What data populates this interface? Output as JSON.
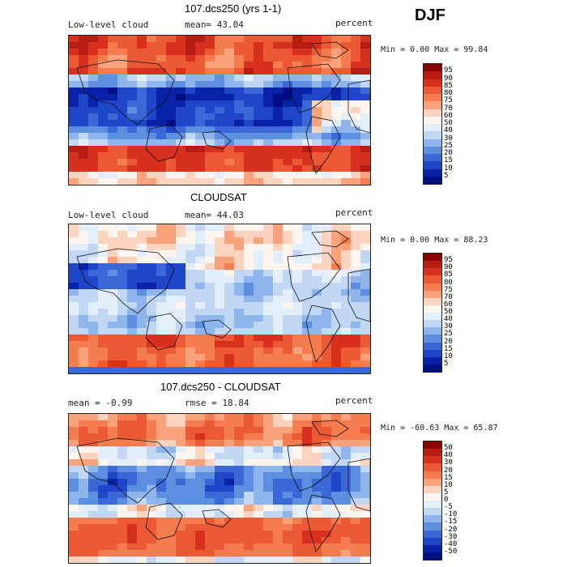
{
  "season": "DJF",
  "panels": [
    {
      "title": "107.dcs250 (yrs 1-1)",
      "variable": "Low-level cloud",
      "mean_text": "mean=  43.04",
      "stat2_text": "",
      "units": "percent",
      "minmax_text": "Min =   0.00 Max =  99.84",
      "colorbar_labels": [
        "95",
        "90",
        "85",
        "80",
        "75",
        "70",
        "60",
        "50",
        "40",
        "30",
        "25",
        "20",
        "15",
        "10",
        "5"
      ],
      "colorbar_colors": [
        "#8b0000",
        "#b81d13",
        "#d7301f",
        "#ec5a35",
        "#f47c4f",
        "#f9a27c",
        "#fcd3be",
        "#fff5ef",
        "#e3eefb",
        "#c1d7f4",
        "#8fb6ec",
        "#5d8fe0",
        "#3a68d6",
        "#1f45c8",
        "#0a22a8",
        "#000e83"
      ]
    },
    {
      "title": "CLOUDSAT",
      "variable": "Low-level cloud",
      "mean_text": "mean=  44.03",
      "stat2_text": "",
      "units": "percent",
      "minmax_text": "Min =   0.00 Max =  88.23",
      "colorbar_labels": [
        "95",
        "90",
        "85",
        "80",
        "75",
        "70",
        "60",
        "50",
        "40",
        "30",
        "25",
        "20",
        "15",
        "10",
        "5"
      ],
      "colorbar_colors": [
        "#8b0000",
        "#b81d13",
        "#d7301f",
        "#ec5a35",
        "#f47c4f",
        "#f9a27c",
        "#fcd3be",
        "#fff5ef",
        "#e3eefb",
        "#c1d7f4",
        "#8fb6ec",
        "#5d8fe0",
        "#3a68d6",
        "#1f45c8",
        "#0a22a8",
        "#000e83"
      ]
    },
    {
      "title": "107.dcs250 - CLOUDSAT",
      "variable": "",
      "mean_text": "mean =  -0.99",
      "stat2_text": "rmse =  18.84",
      "units": "percent",
      "minmax_text": "Min = -60.63 Max =  65.87",
      "colorbar_labels": [
        "50",
        "40",
        "30",
        "20",
        "15",
        "10",
        "5",
        "0",
        "-5",
        "-10",
        "-15",
        "-20",
        "-30",
        "-40",
        "-50"
      ],
      "colorbar_colors": [
        "#8b0000",
        "#b81d13",
        "#d7301f",
        "#ec5a35",
        "#f47c4f",
        "#f9a27c",
        "#fcd3be",
        "#fff5ef",
        "#e3eefb",
        "#c1d7f4",
        "#8fb6ec",
        "#5d8fe0",
        "#3a68d6",
        "#1f45c8",
        "#0a22a8",
        "#000e83"
      ]
    }
  ],
  "chart_data": {
    "type": "heatmap",
    "panels": [
      {
        "title": "107.dcs250 (yrs 1-1)",
        "variable": "Low-level cloud",
        "units": "percent",
        "mean": 43.04,
        "min": 0.0,
        "max": 99.84
      },
      {
        "title": "CLOUDSAT",
        "variable": "Low-level cloud",
        "units": "percent",
        "mean": 44.03,
        "min": 0.0,
        "max": 88.23
      },
      {
        "title": "107.dcs250 - CLOUDSAT",
        "units": "percent",
        "mean": -0.99,
        "rmse": 18.84,
        "min": -60.63,
        "max": 65.87
      }
    ]
  }
}
